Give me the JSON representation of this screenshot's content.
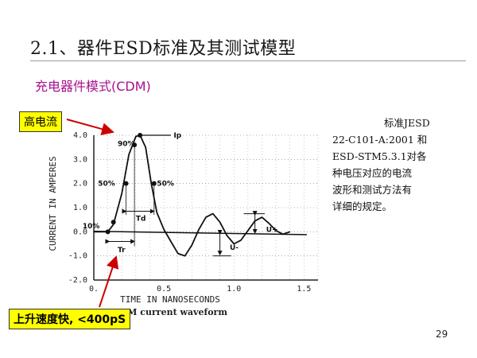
{
  "slide": {
    "title": "2.1、器件ESD标准及其测试模型",
    "subtitle": "充电器件模式(CDM)",
    "callout_top": "高电流",
    "callout_bottom": "上升速度快, <400pS",
    "side_lines": [
      "标准JESD",
      "22-C101-A:2001 和",
      "ESD-STM5.3.1对各",
      "种电压对应的电流",
      "波形和测试方法有",
      "详细的规定。"
    ],
    "page_number": "29"
  },
  "chart_data": {
    "type": "line",
    "title": "",
    "xlabel": "TIME IN NANOSECONDS",
    "ylabel": "CURRENT IN AMPERES",
    "caption": "CDM current waveform",
    "xlim": [
      0,
      1.6
    ],
    "ylim": [
      -2.0,
      4.0
    ],
    "x_ticks": [
      "0.",
      "0.5",
      "1.0",
      "1.5"
    ],
    "y_ticks": [
      "4.0",
      "3.0",
      "2.0",
      "1.0",
      "0.0",
      "-1.0",
      "-2.0"
    ],
    "grid": true,
    "series": [
      {
        "x": [
          0.0,
          0.1,
          0.14,
          0.2,
          0.25,
          0.3,
          0.33,
          0.37,
          0.41,
          0.45,
          0.5,
          0.55,
          0.6,
          0.65,
          0.7,
          0.75,
          0.8,
          0.85,
          0.9,
          0.95,
          1.0,
          1.05,
          1.1,
          1.15,
          1.2,
          1.25,
          1.3,
          1.35,
          1.4
        ],
        "values": [
          0.0,
          0.0,
          0.3,
          1.6,
          3.2,
          3.95,
          4.0,
          3.5,
          2.0,
          0.8,
          0.1,
          -0.4,
          -0.9,
          -1.0,
          -0.55,
          0.1,
          0.6,
          0.75,
          0.4,
          -0.15,
          -0.5,
          -0.35,
          0.05,
          0.45,
          0.6,
          0.35,
          0.05,
          -0.1,
          0.0
        ]
      }
    ],
    "annotations": [
      "Ip",
      "90%",
      "50%",
      "50%",
      "10%",
      "Td",
      "Tr",
      "U+",
      "U-"
    ]
  }
}
